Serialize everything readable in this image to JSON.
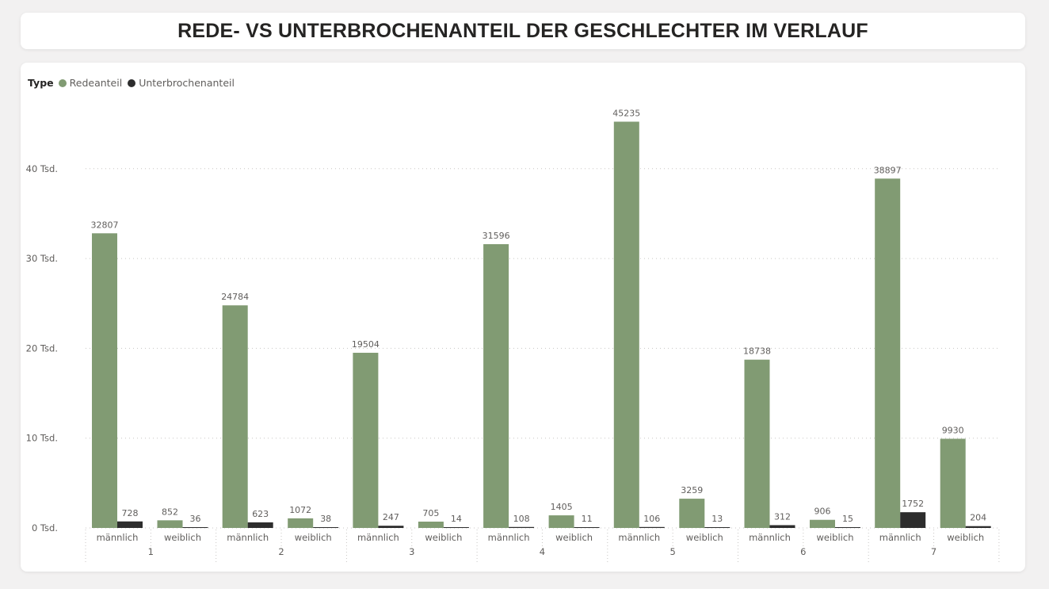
{
  "title": "REDE- VS UNTERBROCHENANTEIL DER GESCHLECHTER IM VERLAUF",
  "legend": {
    "title": "Type",
    "items": [
      {
        "label": "Redeanteil",
        "color": "#819b73"
      },
      {
        "label": "Unterbrochenanteil",
        "color": "#2d2d2d"
      }
    ]
  },
  "chart_data": {
    "type": "bar",
    "title": "REDE- VS UNTERBROCHENANTEIL DER GESCHLECHTER IM VERLAUF",
    "xlabel": "",
    "ylabel": "",
    "ylim": [
      0,
      48000
    ],
    "yticks": [
      {
        "value": 0,
        "label": "0 Tsd."
      },
      {
        "value": 10000,
        "label": "10 Tsd."
      },
      {
        "value": 20000,
        "label": "20 Tsd."
      },
      {
        "value": 30000,
        "label": "30 Tsd."
      },
      {
        "value": 40000,
        "label": "40 Tsd."
      }
    ],
    "grid": true,
    "legend_position": "top-left",
    "groups": [
      {
        "label": "1",
        "subcategories": [
          "männlich",
          "weiblich"
        ]
      },
      {
        "label": "2",
        "subcategories": [
          "männlich",
          "weiblich"
        ]
      },
      {
        "label": "3",
        "subcategories": [
          "männlich",
          "weiblich"
        ]
      },
      {
        "label": "4",
        "subcategories": [
          "männlich",
          "weiblich"
        ]
      },
      {
        "label": "5",
        "subcategories": [
          "männlich",
          "weiblich"
        ]
      },
      {
        "label": "6",
        "subcategories": [
          "männlich",
          "weiblich"
        ]
      },
      {
        "label": "7",
        "subcategories": [
          "männlich",
          "weiblich"
        ]
      }
    ],
    "series": [
      {
        "name": "Redeanteil",
        "color": "#819b73",
        "values": [
          32807,
          852,
          24784,
          1072,
          19504,
          705,
          31596,
          1405,
          45235,
          3259,
          18738,
          906,
          38897,
          9930
        ]
      },
      {
        "name": "Unterbrochenanteil",
        "color": "#2d2d2d",
        "values": [
          728,
          36,
          623,
          38,
          247,
          14,
          108,
          11,
          106,
          13,
          312,
          15,
          1752,
          204
        ]
      }
    ]
  }
}
